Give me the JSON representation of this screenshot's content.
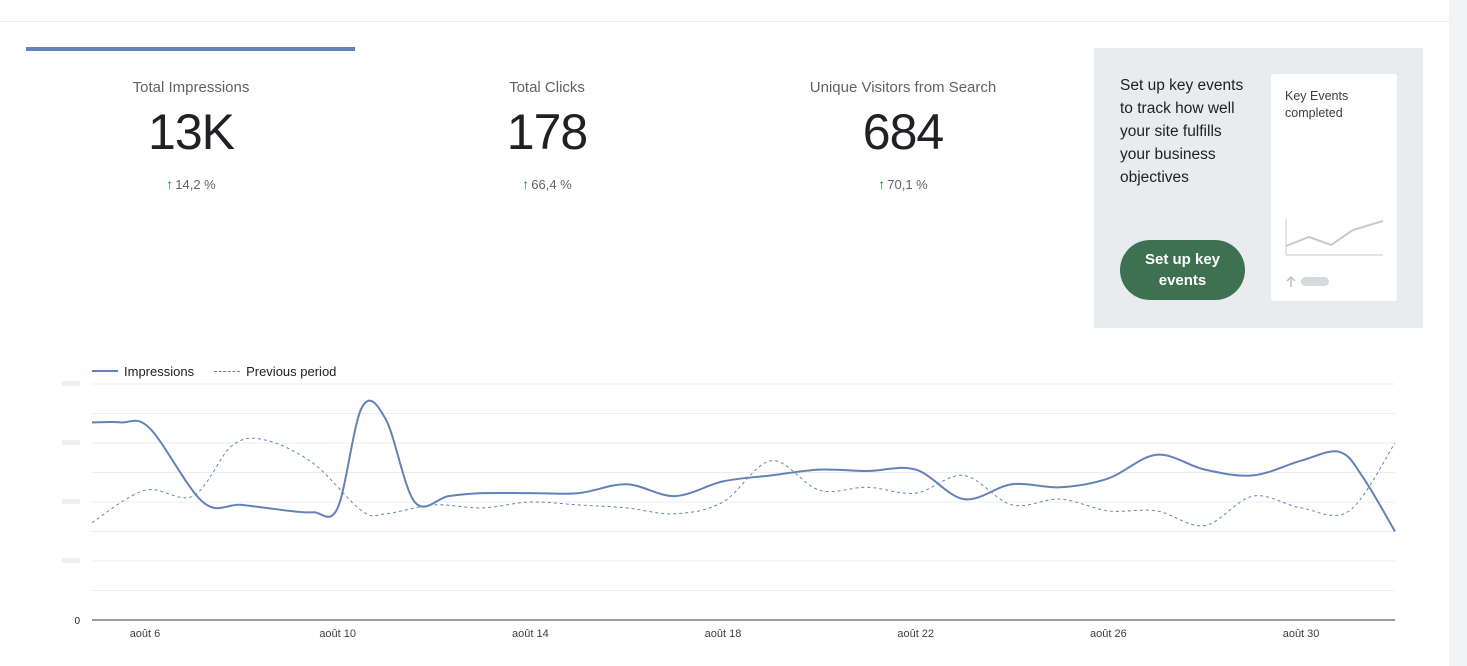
{
  "metrics": [
    {
      "label": "Total Impressions",
      "value": "13K",
      "delta": "14,2 %"
    },
    {
      "label": "Total Clicks",
      "value": "178",
      "delta": "66,4 %"
    },
    {
      "label": "Unique Visitors from Search",
      "value": "684",
      "delta": "70,1 %"
    }
  ],
  "promo": {
    "text": "Set up key events to track how well your site fulfills your business objectives",
    "button_label": "Set up key events",
    "card_title": "Key Events completed"
  },
  "colors": {
    "accent": "#6582b8",
    "positive": "#188038",
    "button": "#3d7152",
    "promo_bg": "#e8ecef"
  },
  "icons": {
    "delta": "arrow-up-icon"
  },
  "chart_data": {
    "type": "line",
    "legend": [
      "Impressions",
      "Previous period"
    ],
    "y_tick_labels": [
      "0",
      "",
      "",
      "",
      ""
    ],
    "ylim": [
      0,
      800
    ],
    "x_tick_labels": [
      "août 6",
      "août 10",
      "août 14",
      "août 18",
      "août 22",
      "août 26",
      "août 30"
    ],
    "x_tick_days": [
      6,
      10,
      14,
      18,
      22,
      26,
      30
    ],
    "x_range_days": [
      4.9,
      31.95
    ],
    "series": [
      {
        "name": "Impressions",
        "style": "solid",
        "points": [
          [
            4.9,
            670
          ],
          [
            5.5,
            670
          ],
          [
            6.1,
            650
          ],
          [
            7.2,
            400
          ],
          [
            8.0,
            390
          ],
          [
            9.0,
            370
          ],
          [
            9.5,
            365
          ],
          [
            10.0,
            380
          ],
          [
            10.5,
            720
          ],
          [
            11.0,
            680
          ],
          [
            11.6,
            400
          ],
          [
            12.3,
            420
          ],
          [
            13.0,
            430
          ],
          [
            14.0,
            430
          ],
          [
            15.0,
            430
          ],
          [
            16.0,
            460
          ],
          [
            17.0,
            420
          ],
          [
            18.0,
            470
          ],
          [
            19.0,
            490
          ],
          [
            20.0,
            510
          ],
          [
            21.0,
            505
          ],
          [
            22.0,
            510
          ],
          [
            23.0,
            410
          ],
          [
            24.0,
            460
          ],
          [
            25.0,
            450
          ],
          [
            26.0,
            480
          ],
          [
            27.0,
            560
          ],
          [
            28.0,
            510
          ],
          [
            29.0,
            490
          ],
          [
            30.0,
            540
          ],
          [
            30.8,
            570
          ],
          [
            31.3,
            480
          ],
          [
            31.95,
            300
          ]
        ]
      },
      {
        "name": "Previous period",
        "style": "dashed",
        "points": [
          [
            4.9,
            330
          ],
          [
            6.0,
            440
          ],
          [
            7.0,
            420
          ],
          [
            7.8,
            590
          ],
          [
            8.5,
            610
          ],
          [
            9.5,
            530
          ],
          [
            10.5,
            370
          ],
          [
            11.0,
            360
          ],
          [
            12.0,
            390
          ],
          [
            13.0,
            380
          ],
          [
            14.0,
            400
          ],
          [
            15.0,
            390
          ],
          [
            16.0,
            380
          ],
          [
            17.0,
            360
          ],
          [
            18.0,
            400
          ],
          [
            19.0,
            540
          ],
          [
            20.0,
            440
          ],
          [
            21.0,
            450
          ],
          [
            22.0,
            430
          ],
          [
            23.0,
            490
          ],
          [
            24.0,
            390
          ],
          [
            25.0,
            410
          ],
          [
            26.0,
            370
          ],
          [
            27.0,
            370
          ],
          [
            28.0,
            320
          ],
          [
            29.0,
            420
          ],
          [
            30.0,
            380
          ],
          [
            31.0,
            370
          ],
          [
            31.95,
            600
          ]
        ]
      }
    ]
  }
}
